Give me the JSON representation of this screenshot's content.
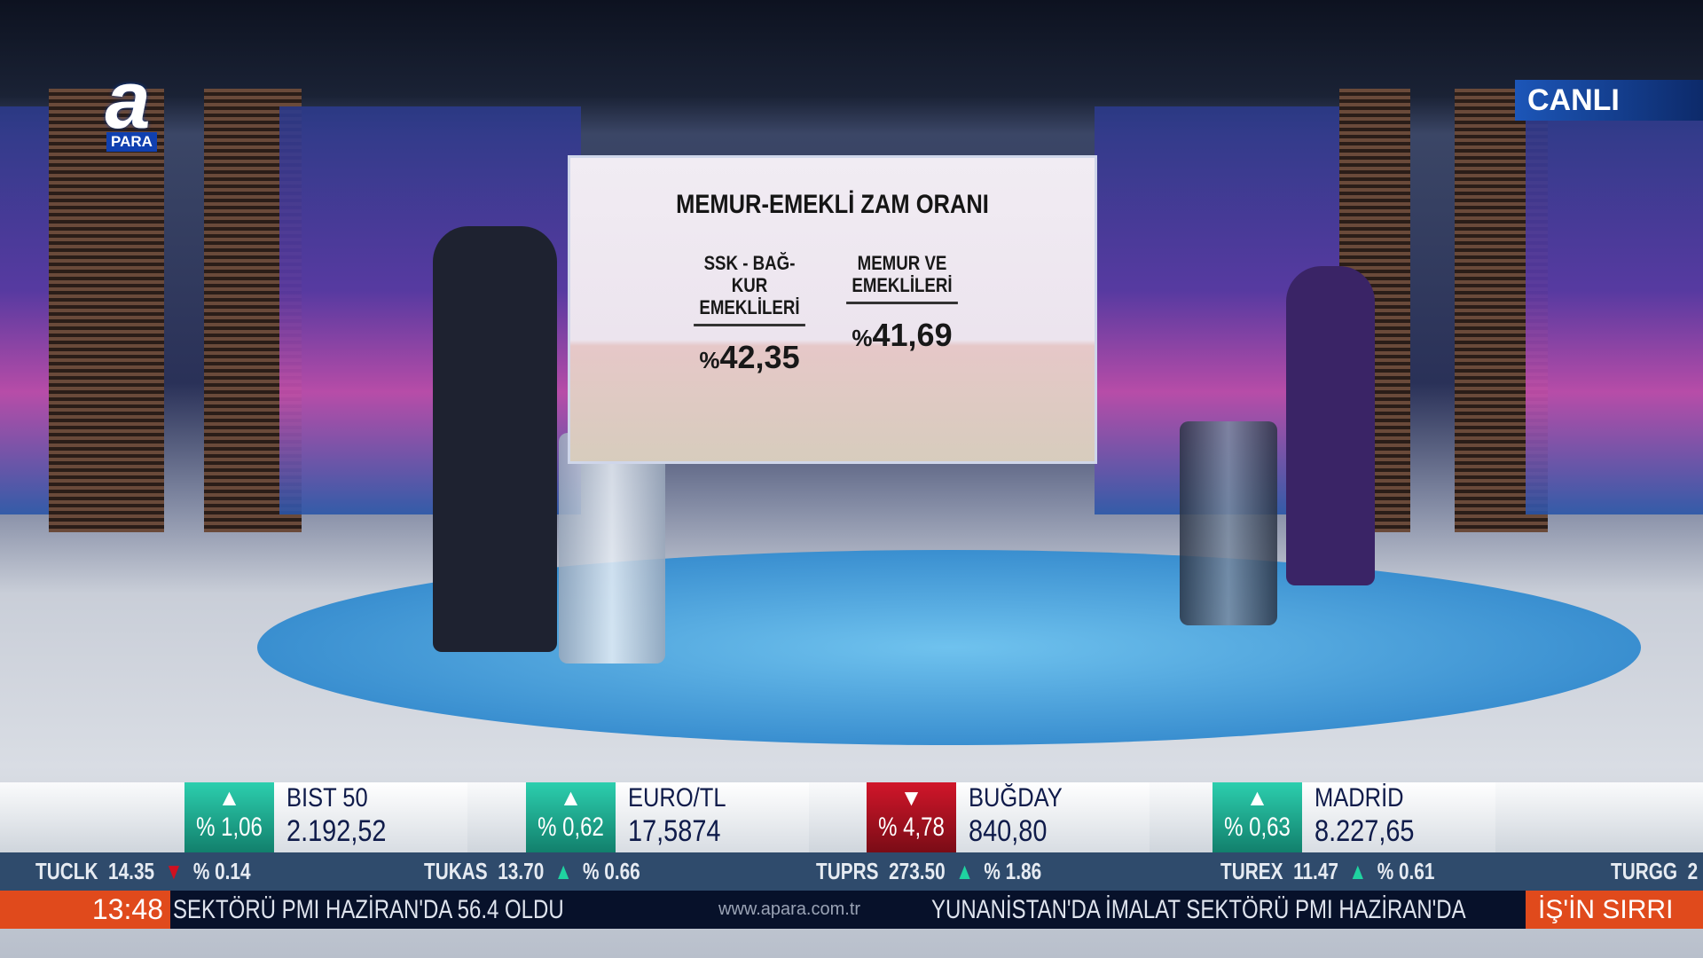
{
  "channel": {
    "logo_letter": "a",
    "logo_text": "PARA",
    "live_label": "CANLI"
  },
  "screen": {
    "title": "MEMUR-EMEKLİ ZAM ORANI",
    "columns": [
      {
        "label_line1": "SSK - BAĞ-KUR",
        "label_line2": "EMEKLİLERİ",
        "percent_sign": "%",
        "value": "42,35"
      },
      {
        "label_line1": "MEMUR VE",
        "label_line2": "EMEKLİLERİ",
        "percent_sign": "%",
        "value": "41,69"
      }
    ]
  },
  "market": [
    {
      "name": "BIST 50",
      "value": "2.192,52",
      "change": "% 1,06",
      "direction": "up"
    },
    {
      "name": "EURO/TL",
      "value": "17,5874",
      "change": "% 0,62",
      "direction": "up"
    },
    {
      "name": "BUĞDAY",
      "value": "840,80",
      "change": "% 4,78",
      "direction": "down"
    },
    {
      "name": "MADRİD",
      "value": "8.227,65",
      "change": "% 0,63",
      "direction": "up"
    }
  ],
  "stocks": [
    {
      "symbol": "TUCLK",
      "price": "14.35",
      "arrow": "▼",
      "change": "% 0.14"
    },
    {
      "symbol": "TUKAS",
      "price": "13.70",
      "arrow": "▲",
      "change": "% 0.66"
    },
    {
      "symbol": "TUPRS",
      "price": "273.50",
      "arrow": "▲",
      "change": "% 1.86"
    },
    {
      "symbol": "TUREX",
      "price": "11.47",
      "arrow": "▲",
      "change": "% 0.61"
    },
    {
      "symbol": "TURGG",
      "price": "2"
    }
  ],
  "news": {
    "time": "13:48",
    "headline_1": "SEKTÖRÜ PMI HAZİRAN'DA 56.4 OLDU",
    "site": "www.apara.com.tr",
    "headline_2": "YUNANİSTAN'DA İMALAT SEKTÖRÜ PMI HAZİRAN'DA",
    "program": "İŞ'İN SIRRI"
  },
  "colors": {
    "up": "#1fc9a4",
    "down": "#c8102e",
    "news_accent": "#e04a1c",
    "stock_bar": "#2f4b6c"
  }
}
